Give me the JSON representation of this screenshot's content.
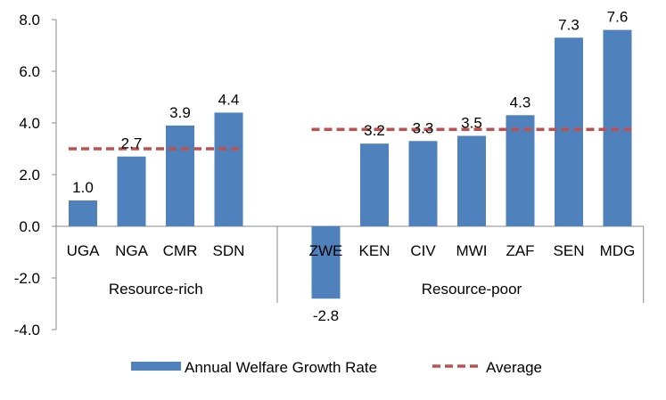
{
  "chart_data": {
    "type": "bar",
    "categories": [
      "UGA",
      "NGA",
      "CMR",
      "SDN",
      "ZWE",
      "KEN",
      "CIV",
      "MWI",
      "ZAF",
      "SEN",
      "MDG"
    ],
    "groups": [
      {
        "label": "Resource-rich",
        "categories": [
          "UGA",
          "NGA",
          "CMR",
          "SDN"
        ]
      },
      {
        "label": "Resource-poor",
        "categories": [
          "ZWE",
          "KEN",
          "CIV",
          "MWI",
          "ZAF",
          "SEN",
          "MDG"
        ]
      }
    ],
    "series": [
      {
        "name": "Annual Welfare Growth Rate",
        "type": "bar",
        "color": "#4f81bd",
        "values": [
          1.0,
          2.7,
          3.9,
          4.4,
          -2.8,
          3.2,
          3.3,
          3.5,
          4.3,
          7.3,
          7.6
        ],
        "labels": [
          "1.0",
          "2.7",
          "3.9",
          "4.4",
          "-2.8",
          "3.2",
          "3.3",
          "3.5",
          "4.3",
          "7.3",
          "7.6"
        ]
      },
      {
        "name": "Average",
        "type": "line",
        "style": "dashed",
        "color": "#c0504d",
        "group_values": [
          3.0,
          3.75
        ]
      }
    ],
    "yticks": [
      "8.0",
      "6.0",
      "4.0",
      "2.0",
      "0.0",
      "-2.0",
      "-4.0"
    ],
    "ylim": [
      -4,
      8
    ],
    "legend_position": "bottom",
    "grid": false
  }
}
